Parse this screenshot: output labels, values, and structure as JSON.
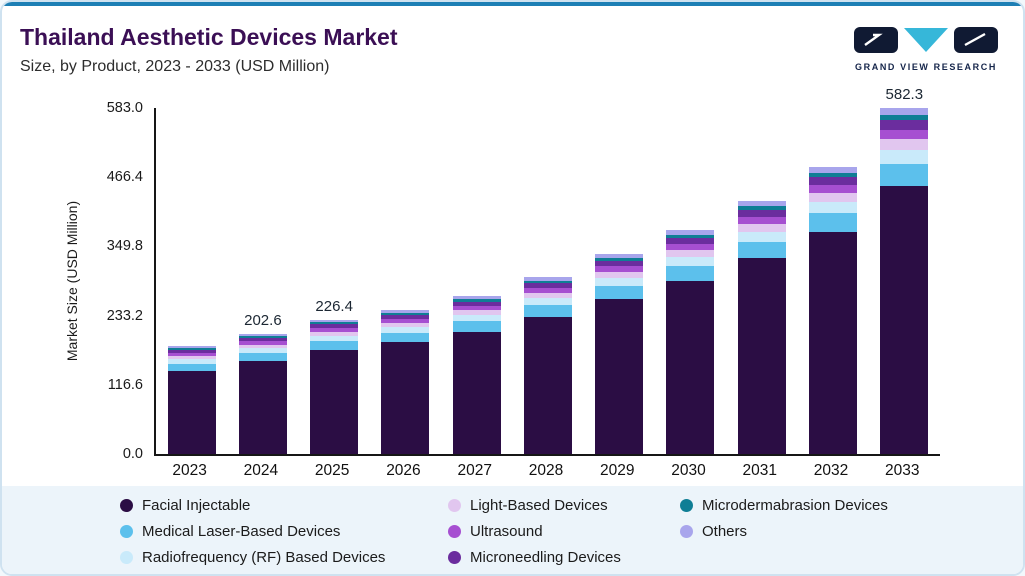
{
  "header": {
    "title": "Thailand Aesthetic Devices Market",
    "subtitle": "Size, by Product, 2023 - 2033 (USD Million)",
    "logo_text": "GRAND VIEW RESEARCH"
  },
  "chart_data": {
    "type": "bar",
    "stacked": true,
    "title": "Thailand Aesthetic Devices Market Size, by Product, 2023 - 2033 (USD Million)",
    "ylabel": "Market Size (USD Million)",
    "ylim": [
      0,
      583.0
    ],
    "yticks": [
      0.0,
      116.6,
      233.2,
      349.8,
      466.4,
      583.0
    ],
    "grid": false,
    "legend_position": "bottom",
    "categories": [
      "2023",
      "2024",
      "2025",
      "2026",
      "2027",
      "2028",
      "2029",
      "2030",
      "2031",
      "2032",
      "2033"
    ],
    "bar_value_labels": {
      "2024": "202.6",
      "2025": "226.4",
      "2033": "582.3"
    },
    "series": [
      {
        "name": "Facial Injectable",
        "color": "#2b0d44",
        "values": [
          140.7,
          157.0,
          175.5,
          188.3,
          206.2,
          231.0,
          261.2,
          292.2,
          330.2,
          374.3,
          451.3
        ]
      },
      {
        "name": "Medical Laser-Based Devices",
        "color": "#5cc0ec",
        "values": [
          11.8,
          13.2,
          14.7,
          15.8,
          17.3,
          19.4,
          21.9,
          24.5,
          27.7,
          31.4,
          37.9
        ]
      },
      {
        "name": "Radiofrequency (RF) Based Devices",
        "color": "#c9eafa",
        "values": [
          7.3,
          8.1,
          9.1,
          9.7,
          10.6,
          11.9,
          13.5,
          15.1,
          17.0,
          19.3,
          23.3
        ]
      },
      {
        "name": "Light-Based Devices",
        "color": "#e1c6ef",
        "values": [
          5.4,
          6.1,
          6.8,
          7.3,
          8.0,
          8.9,
          10.1,
          11.3,
          12.8,
          14.5,
          17.5
        ]
      },
      {
        "name": "Ultrasound",
        "color": "#a64fd1",
        "values": [
          5.1,
          5.7,
          6.3,
          6.8,
          7.4,
          8.3,
          9.4,
          10.6,
          11.9,
          13.5,
          16.3
        ]
      },
      {
        "name": "Microneedling Devices",
        "color": "#6b2d9e",
        "values": [
          5.1,
          5.7,
          6.3,
          6.8,
          7.4,
          8.3,
          9.4,
          10.6,
          11.9,
          13.5,
          16.3
        ]
      },
      {
        "name": "Microdermabrasion Devices",
        "color": "#0f7e95",
        "values": [
          2.5,
          2.8,
          3.2,
          3.4,
          3.7,
          4.2,
          4.7,
          5.3,
          6.0,
          6.8,
          8.2
        ]
      },
      {
        "name": "Others",
        "color": "#a8a5ec",
        "values": [
          3.6,
          4.1,
          4.5,
          4.9,
          5.3,
          6.0,
          6.7,
          7.5,
          8.5,
          9.7,
          11.6
        ]
      }
    ]
  }
}
